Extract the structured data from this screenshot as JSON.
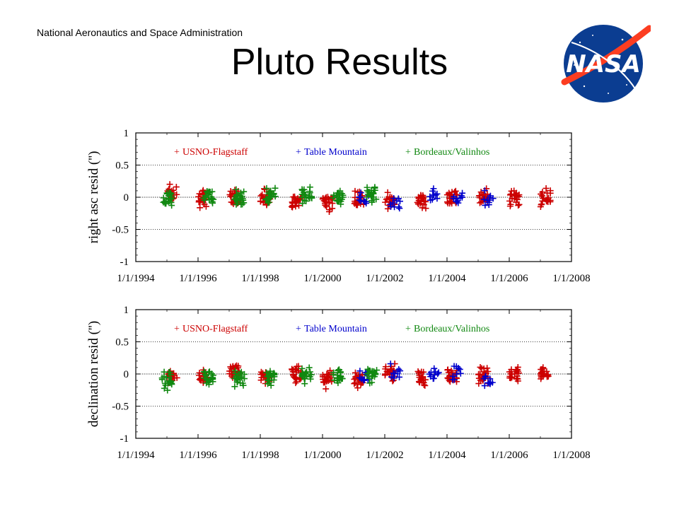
{
  "header": {
    "org": "National Aeronautics and Space Administration",
    "title": "Pluto Results"
  },
  "logo": {
    "icon": "nasa-meatball-logo",
    "text": "NASA"
  },
  "colors": {
    "usno": "#cc0000",
    "table_mountain": "#0000cc",
    "bordeaux": "#118811"
  },
  "chart_data": [
    {
      "id": "ra",
      "type": "scatter",
      "title": "",
      "xlabel": "",
      "ylabel": "right asc resid ('')",
      "ylim": [
        -1,
        1
      ],
      "xlim": [
        "1/1/1994",
        "1/1/2008"
      ],
      "y_ticks": [
        "1",
        "0.5",
        "0",
        "-0.5",
        "-1"
      ],
      "x_ticks": [
        "1/1/1994",
        "1/1/1996",
        "1/1/1998",
        "1/1/2000",
        "1/1/2002",
        "1/1/2004",
        "1/1/2006",
        "1/1/2008"
      ],
      "reference_lines": [
        0.5,
        0,
        -0.5
      ],
      "legend_placement": "top",
      "series": [
        {
          "name": "USNO-Flagstaff",
          "color": "#cc0000",
          "clusters": [
            {
              "x": "1995-03",
              "y": 0.07
            },
            {
              "x": "1996-03",
              "y": 0.0
            },
            {
              "x": "1997-03",
              "y": 0.0
            },
            {
              "x": "1998-03",
              "y": 0.0
            },
            {
              "x": "1999-03",
              "y": -0.05
            },
            {
              "x": "2000-03",
              "y": -0.07
            },
            {
              "x": "2001-03",
              "y": -0.02
            },
            {
              "x": "2002-03",
              "y": -0.05
            },
            {
              "x": "2003-03",
              "y": -0.03
            },
            {
              "x": "2004-03",
              "y": -0.02
            },
            {
              "x": "2005-03",
              "y": 0.0
            },
            {
              "x": "2006-03",
              "y": 0.0
            },
            {
              "x": "2007-03",
              "y": 0.0
            }
          ]
        },
        {
          "name": "Table Mountain",
          "color": "#0000cc",
          "clusters": [
            {
              "x": "2001-05",
              "y": 0.0
            },
            {
              "x": "2002-05",
              "y": -0.08
            },
            {
              "x": "2003-08",
              "y": 0.05
            },
            {
              "x": "2004-05",
              "y": 0.0
            },
            {
              "x": "2005-05",
              "y": -0.03
            }
          ]
        },
        {
          "name": "Bordeaux/Valinhos",
          "color": "#118811",
          "clusters": [
            {
              "x": "1995-01",
              "y": 0.0
            },
            {
              "x": "1996-05",
              "y": 0.02
            },
            {
              "x": "1997-05",
              "y": -0.02
            },
            {
              "x": "1998-05",
              "y": 0.03
            },
            {
              "x": "1999-07",
              "y": 0.05
            },
            {
              "x": "2000-07",
              "y": 0.0
            },
            {
              "x": "2001-08",
              "y": 0.05
            }
          ]
        }
      ]
    },
    {
      "id": "dec",
      "type": "scatter",
      "title": "",
      "xlabel": "",
      "ylabel": "declination resid ('')",
      "ylim": [
        -1,
        1
      ],
      "xlim": [
        "1/1/1994",
        "1/1/2008"
      ],
      "y_ticks": [
        "1",
        "0.5",
        "0",
        "-0.5",
        "-1"
      ],
      "x_ticks": [
        "1/1/1994",
        "1/1/1996",
        "1/1/1998",
        "1/1/2000",
        "1/1/2002",
        "1/1/2004",
        "1/1/2006",
        "1/1/2008"
      ],
      "reference_lines": [
        0.5,
        0,
        -0.5
      ],
      "legend_placement": "top",
      "series": [
        {
          "name": "USNO-Flagstaff",
          "color": "#cc0000",
          "clusters": [
            {
              "x": "1995-03",
              "y": -0.05
            },
            {
              "x": "1996-03",
              "y": -0.05
            },
            {
              "x": "1997-03",
              "y": 0.05
            },
            {
              "x": "1998-03",
              "y": -0.05
            },
            {
              "x": "1999-03",
              "y": 0.0
            },
            {
              "x": "2000-03",
              "y": -0.08
            },
            {
              "x": "2001-03",
              "y": -0.08
            },
            {
              "x": "2002-03",
              "y": 0.0
            },
            {
              "x": "2003-03",
              "y": -0.05
            },
            {
              "x": "2004-03",
              "y": -0.02
            },
            {
              "x": "2005-03",
              "y": -0.03
            },
            {
              "x": "2006-03",
              "y": 0.0
            },
            {
              "x": "2007-03",
              "y": 0.0
            }
          ]
        },
        {
          "name": "Table Mountain",
          "color": "#0000cc",
          "clusters": [
            {
              "x": "2001-05",
              "y": -0.05
            },
            {
              "x": "2002-05",
              "y": 0.0
            },
            {
              "x": "2003-08",
              "y": -0.02
            },
            {
              "x": "2004-05",
              "y": 0.0
            },
            {
              "x": "2005-05",
              "y": -0.08
            }
          ]
        },
        {
          "name": "Bordeaux/Valinhos",
          "color": "#118811",
          "clusters": [
            {
              "x": "1995-01",
              "y": -0.1
            },
            {
              "x": "1996-05",
              "y": -0.05
            },
            {
              "x": "1997-05",
              "y": -0.08
            },
            {
              "x": "1998-05",
              "y": -0.05
            },
            {
              "x": "1999-07",
              "y": 0.0
            },
            {
              "x": "2000-07",
              "y": -0.03
            },
            {
              "x": "2001-08",
              "y": 0.0
            }
          ]
        }
      ]
    }
  ]
}
